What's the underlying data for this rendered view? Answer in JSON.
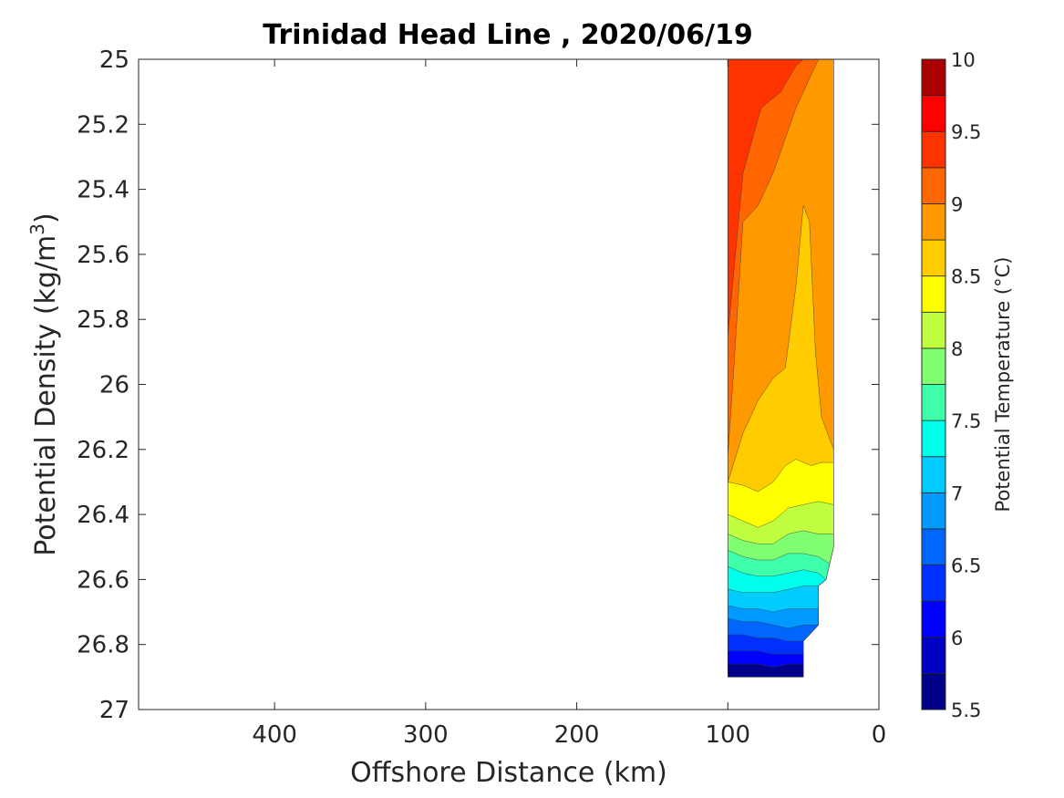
{
  "chart_data": {
    "type": "heatmap",
    "subtype": "filled-contour",
    "title": "Trinidad Head Line , 2020/06/19",
    "xlabel": "Offshore Distance (km)",
    "ylabel_main": "Potential Density (kg/m",
    "ylabel_sup": "3",
    "ylabel_close": ")",
    "xlim": [
      490,
      0
    ],
    "x_reversed": true,
    "ylim": [
      25,
      27
    ],
    "y_reversed": true,
    "x_ticks": [
      400,
      300,
      200,
      100,
      0
    ],
    "x_tick_labels": [
      "400",
      "300",
      "200",
      "100",
      "0"
    ],
    "y_ticks": [
      25,
      25.2,
      25.4,
      25.6,
      25.8,
      26,
      26.2,
      26.4,
      26.6,
      26.8,
      27
    ],
    "y_tick_labels": [
      "25",
      "25.2",
      "25.4",
      "25.6",
      "25.8",
      "26",
      "26.2",
      "26.4",
      "26.6",
      "26.8",
      "27"
    ],
    "grid": false,
    "colorbar": {
      "label": "Potential Temperature (°C)",
      "range": [
        5.5,
        10
      ],
      "levels": [
        5.5,
        5.75,
        6,
        6.25,
        6.5,
        6.75,
        7,
        7.25,
        7.5,
        7.75,
        8,
        8.25,
        8.5,
        8.75,
        9,
        9.25,
        9.5,
        9.75,
        10
      ],
      "colors": [
        "#00008b",
        "#0000c4",
        "#0000ff",
        "#0030ff",
        "#0066ff",
        "#0099ff",
        "#00ccff",
        "#00ffea",
        "#40ffaa",
        "#80ff70",
        "#bfff40",
        "#ffff00",
        "#ffcc00",
        "#ff9900",
        "#ff6600",
        "#ff3300",
        "#ff0000",
        "#aa0000"
      ],
      "ticks": [
        10,
        9.5,
        9,
        8.5,
        8,
        7.5,
        7,
        6.5,
        6,
        5.5
      ],
      "tick_labels": [
        "10",
        "9.5",
        "9",
        "8.5",
        "8",
        "7.5",
        "7",
        "6.5",
        "6",
        "5.5"
      ]
    },
    "data_extent": {
      "x_range": [
        100,
        30
      ],
      "y_range": [
        25,
        26.9
      ]
    },
    "contour_boundaries": [
      {
        "level": 9.5,
        "color_above": "#ff0000",
        "points": [
          [
            100,
            25.75
          ],
          [
            96,
            25.45
          ],
          [
            92,
            25.22
          ],
          [
            85,
            25.08
          ],
          [
            78,
            25.02
          ],
          [
            70,
            25.0
          ]
        ]
      },
      {
        "level": 9.25,
        "color_above": "#ff3300",
        "points": [
          [
            100,
            25.0
          ]
        ]
      },
      {
        "level": 9.0,
        "color_above": "#ff6600",
        "points": [
          [
            100,
            25.85
          ],
          [
            90,
            25.35
          ],
          [
            78,
            25.15
          ],
          [
            65,
            25.1
          ],
          [
            55,
            25.02
          ],
          [
            50,
            25.0
          ]
        ]
      },
      {
        "level": 8.75,
        "color_above": "#ff9900",
        "points": [
          [
            100,
            26.22
          ],
          [
            96,
            25.95
          ],
          [
            90,
            25.5
          ],
          [
            80,
            25.45
          ],
          [
            70,
            25.35
          ],
          [
            55,
            25.15
          ],
          [
            45,
            25.05
          ],
          [
            40,
            25.0
          ]
        ]
      },
      {
        "level": 8.5,
        "color_above": "#ffcc00",
        "points": [
          [
            100,
            26.3
          ],
          [
            90,
            26.15
          ],
          [
            80,
            26.05
          ],
          [
            70,
            25.98
          ],
          [
            62,
            25.95
          ],
          [
            55,
            25.7
          ],
          [
            50,
            25.45
          ],
          [
            46,
            25.5
          ],
          [
            42,
            25.9
          ],
          [
            38,
            26.1
          ],
          [
            30,
            26.2
          ]
        ]
      },
      {
        "level": 8.25,
        "color_above": "#ffff00",
        "points": [
          [
            100,
            26.3
          ],
          [
            90,
            26.31
          ],
          [
            80,
            26.33
          ],
          [
            70,
            26.3
          ],
          [
            62,
            26.25
          ],
          [
            55,
            26.23
          ],
          [
            45,
            26.25
          ],
          [
            38,
            26.24
          ],
          [
            30,
            26.24
          ]
        ]
      },
      {
        "level": 8.0,
        "color_above": "#bfff40",
        "points": [
          [
            100,
            26.4
          ],
          [
            90,
            26.42
          ],
          [
            80,
            26.44
          ],
          [
            70,
            26.42
          ],
          [
            60,
            26.38
          ],
          [
            50,
            26.37
          ],
          [
            40,
            26.36
          ],
          [
            30,
            26.37
          ]
        ]
      },
      {
        "level": 7.75,
        "color_above": "#80ff70",
        "points": [
          [
            100,
            26.46
          ],
          [
            90,
            26.48
          ],
          [
            80,
            26.49
          ],
          [
            70,
            26.49
          ],
          [
            60,
            26.46
          ],
          [
            50,
            26.45
          ],
          [
            40,
            26.46
          ],
          [
            30,
            26.46
          ]
        ]
      },
      {
        "level": 7.5,
        "color_above": "#40ffaa",
        "points": [
          [
            100,
            26.51
          ],
          [
            90,
            26.53
          ],
          [
            80,
            26.54
          ],
          [
            70,
            26.54
          ],
          [
            60,
            26.52
          ],
          [
            50,
            26.52
          ],
          [
            40,
            26.53
          ],
          [
            33,
            26.55
          ]
        ]
      },
      {
        "level": 7.25,
        "color_above": "#00ffea",
        "points": [
          [
            100,
            26.56
          ],
          [
            90,
            26.58
          ],
          [
            80,
            26.59
          ],
          [
            70,
            26.59
          ],
          [
            60,
            26.58
          ],
          [
            50,
            26.57
          ],
          [
            40,
            26.58
          ],
          [
            35,
            26.6
          ]
        ]
      },
      {
        "level": 7.0,
        "color_above": "#00ccff",
        "points": [
          [
            100,
            26.63
          ],
          [
            90,
            26.64
          ],
          [
            80,
            26.64
          ],
          [
            70,
            26.64
          ],
          [
            60,
            26.63
          ],
          [
            50,
            26.62
          ],
          [
            40,
            26.62
          ]
        ]
      },
      {
        "level": 6.75,
        "color_above": "#0099ff",
        "points": [
          [
            100,
            26.68
          ],
          [
            90,
            26.69
          ],
          [
            80,
            26.69
          ],
          [
            70,
            26.7
          ],
          [
            60,
            26.69
          ],
          [
            50,
            26.69
          ],
          [
            40,
            26.69
          ]
        ]
      },
      {
        "level": 6.5,
        "color_above": "#0066ff",
        "points": [
          [
            100,
            26.72
          ],
          [
            90,
            26.73
          ],
          [
            80,
            26.73
          ],
          [
            70,
            26.74
          ],
          [
            60,
            26.75
          ],
          [
            50,
            26.74
          ],
          [
            42,
            26.74
          ]
        ]
      },
      {
        "level": 6.25,
        "color_above": "#0030ff",
        "points": [
          [
            100,
            26.77
          ],
          [
            90,
            26.77
          ],
          [
            80,
            26.78
          ],
          [
            70,
            26.78
          ],
          [
            60,
            26.79
          ],
          [
            50,
            26.79
          ]
        ]
      },
      {
        "level": 6.0,
        "color_above": "#0000ff",
        "points": [
          [
            100,
            26.82
          ],
          [
            90,
            26.82
          ],
          [
            80,
            26.82
          ],
          [
            70,
            26.83
          ],
          [
            60,
            26.83
          ],
          [
            50,
            26.83
          ]
        ]
      },
      {
        "level": 5.75,
        "color_above": "#0000c4",
        "points": [
          [
            100,
            26.86
          ],
          [
            90,
            26.86
          ],
          [
            80,
            26.86
          ],
          [
            70,
            26.87
          ],
          [
            60,
            26.86
          ],
          [
            50,
            26.86
          ]
        ]
      }
    ]
  }
}
